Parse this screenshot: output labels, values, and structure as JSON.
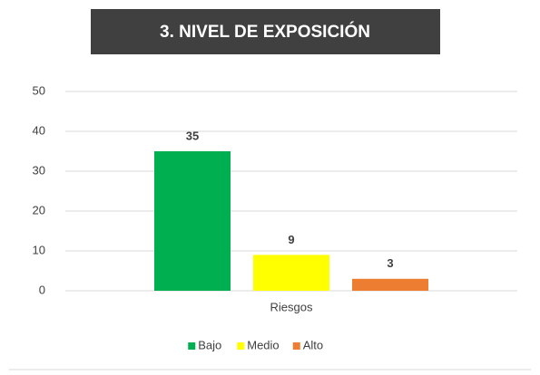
{
  "chart_data": {
    "type": "bar",
    "title": "3. NIVEL DE EXPOSICIÓN",
    "categories": [
      "Riesgos"
    ],
    "series": [
      {
        "name": "Bajo",
        "color": "#00b050",
        "values": [
          35
        ]
      },
      {
        "name": "Medio",
        "color": "#ffff00",
        "values": [
          9
        ]
      },
      {
        "name": "Alto",
        "color": "#ed7d31",
        "values": [
          3
        ]
      }
    ],
    "ylim": [
      0,
      50
    ],
    "yticks": [
      0,
      10,
      20,
      30,
      40,
      50
    ],
    "grid": true,
    "legend": "bottom"
  }
}
